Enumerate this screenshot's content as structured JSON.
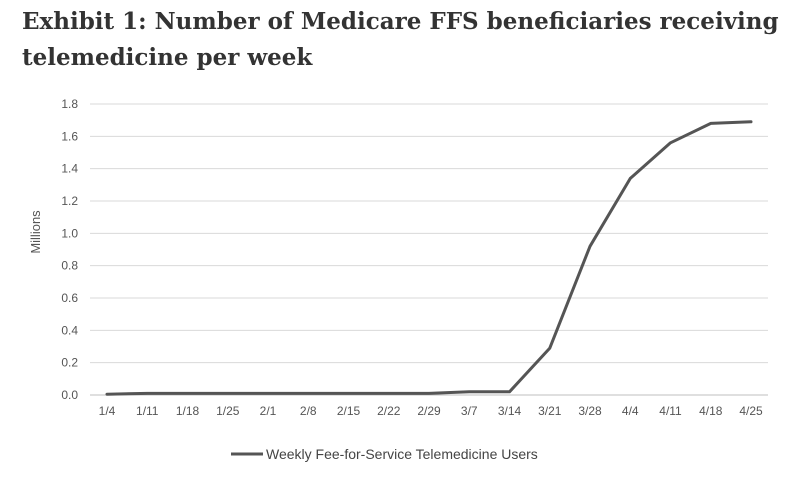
{
  "title": "Exhibit 1: Number of Medicare FFS beneficiaries receiving telemedicine per week",
  "chart_data": {
    "type": "line",
    "title": "Exhibit 1: Number of Medicare FFS beneficiaries receiving telemedicine per week",
    "xlabel": "",
    "ylabel": "Millions",
    "ylim": [
      0,
      1.8
    ],
    "yticks": [
      "0.0",
      "0.2",
      "0.4",
      "0.6",
      "0.8",
      "1.0",
      "1.2",
      "1.4",
      "1.6",
      "1.8"
    ],
    "categories": [
      "1/4",
      "1/11",
      "1/18",
      "1/25",
      "2/1",
      "2/8",
      "2/15",
      "2/22",
      "2/29",
      "3/7",
      "3/14",
      "3/21",
      "3/28",
      "4/4",
      "4/11",
      "4/18",
      "4/25"
    ],
    "series": [
      {
        "name": "Weekly Fee-for-Service Telemedicine Users",
        "color": "#555555",
        "values": [
          0.005,
          0.01,
          0.01,
          0.01,
          0.01,
          0.01,
          0.01,
          0.01,
          0.01,
          0.02,
          0.02,
          0.29,
          0.92,
          1.34,
          1.56,
          1.68,
          1.69
        ]
      }
    ],
    "grid": true,
    "legend": "bottom"
  }
}
